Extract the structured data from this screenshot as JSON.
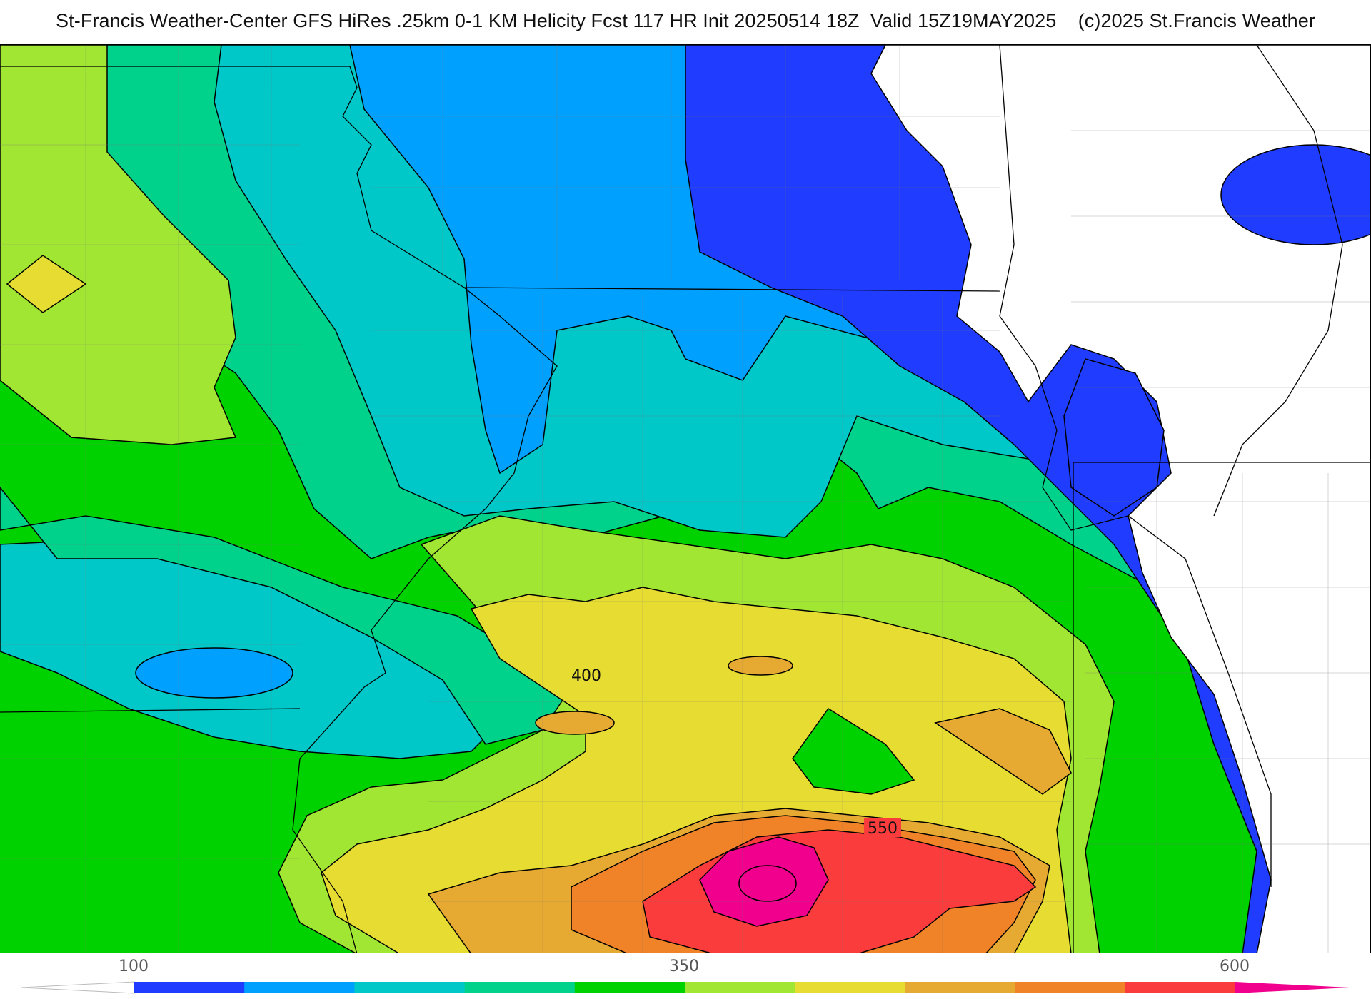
{
  "header": {
    "title": "St-Francis Weather-Center GFS HiRes .25km 0-1 KM Helicity Fcst 117 HR Init 20250514 18Z  Valid 15Z19MAY2025    (c)2025 St.Francis Weather"
  },
  "map": {
    "contour_labels": [
      "400",
      "550"
    ]
  },
  "colorbar": {
    "tick_labels": [
      "100",
      "350",
      "600"
    ],
    "colors": [
      "#1f3cff",
      "#00a0ff",
      "#00c8c8",
      "#00d28c",
      "#00d200",
      "#a0e632",
      "#e6dc32",
      "#e6aa32",
      "#f08228",
      "#fa3c3c",
      "#f0008c"
    ]
  }
}
